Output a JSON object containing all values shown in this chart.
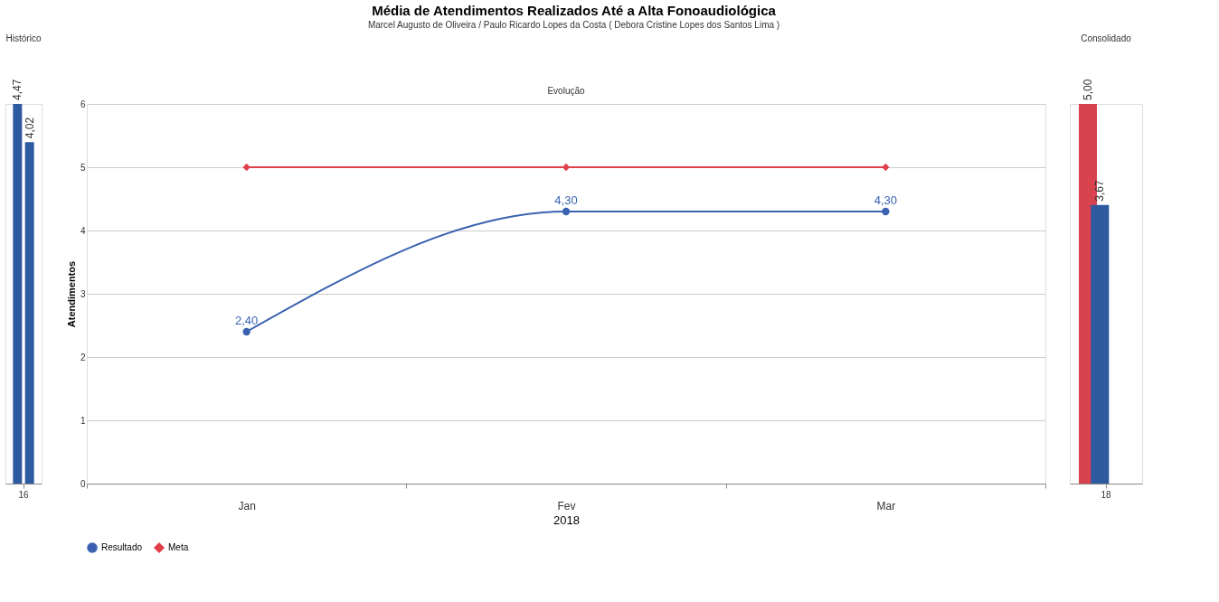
{
  "chart_data": [
    {
      "type": "bar",
      "title": "Histórico",
      "categories": [
        "16"
      ],
      "series": [
        {
          "color": "#2e5aa0",
          "values": [
            4.47
          ],
          "value_labels": [
            "4,47"
          ]
        },
        {
          "color": "#2e5aa0",
          "values": [
            4.02
          ],
          "value_labels": [
            "4,02"
          ]
        }
      ]
    },
    {
      "type": "line",
      "title": "Média de Atendimentos Realizados Até a Alta Fonoaudiológica",
      "subtitle": "Marcel Augusto de Oliveira / Paulo Ricardo Lopes da Costa ( Debora Cristine Lopes dos Santos Lima )",
      "annotations": [
        "Evolução"
      ],
      "xlabel": "2018",
      "ylabel": "Atendimentos",
      "categories": [
        "Jan",
        "Fev",
        "Mar"
      ],
      "ylim": [
        0,
        6
      ],
      "yticks": [
        0,
        1,
        2,
        3,
        4,
        5,
        6
      ],
      "grid": "y",
      "legend": "bottom",
      "series": [
        {
          "name": "Resultado",
          "color": "#3a62b0",
          "marker": "circle",
          "values": [
            2.4,
            4.3,
            4.3
          ],
          "value_labels": [
            "2,40",
            "4,30",
            "4,30"
          ]
        },
        {
          "name": "Meta",
          "color": "#e0404a",
          "marker": "diamond",
          "values": [
            5,
            5,
            5
          ]
        }
      ]
    },
    {
      "type": "bar",
      "title": "Consolidado",
      "categories": [
        "18"
      ],
      "series": [
        {
          "color": "#d9434f",
          "values": [
            5.0
          ],
          "value_labels": [
            "5,00"
          ]
        },
        {
          "color": "#2e5aa0",
          "values": [
            3.67
          ],
          "value_labels": [
            "3,67"
          ]
        }
      ]
    }
  ]
}
